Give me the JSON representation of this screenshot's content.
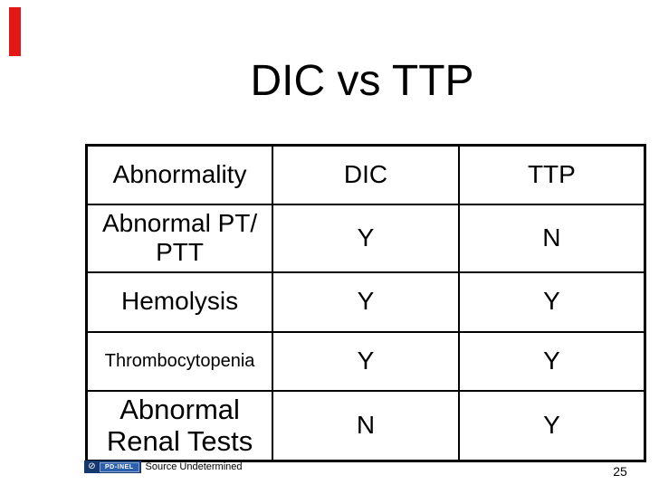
{
  "slide": {
    "title": "DIC vs TTP",
    "page_number": "25"
  },
  "table": {
    "headers": [
      "Abnormality",
      "DIC",
      "TTP"
    ],
    "rows": [
      {
        "label": "Abnormal PT/ PTT",
        "dic": "Y",
        "ttp": "N"
      },
      {
        "label": "Hemolysis",
        "dic": "Y",
        "ttp": "Y"
      },
      {
        "label": "Thrombocytopenia",
        "dic": "Y",
        "ttp": "Y"
      },
      {
        "label": "Abnormal Renal Tests",
        "dic": "N",
        "ttp": "Y"
      }
    ]
  },
  "footer": {
    "badge_icon_glyph": "⊘",
    "badge_label": "PD-INEL",
    "source_text": "Source Undetermined"
  },
  "colors": {
    "accent_red": "#e41717",
    "badge_navy": "#15396f",
    "badge_blue": "#2e61ad",
    "text": "#000000",
    "background": "#ffffff"
  }
}
